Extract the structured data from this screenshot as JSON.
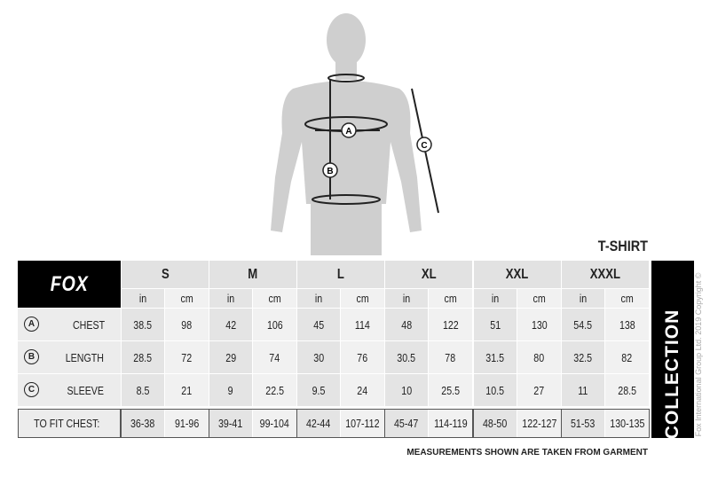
{
  "product_title": "T-SHIRT",
  "brand": "FOX",
  "side_label": "COLLECTION",
  "copyright": "Fox International Group Ltd. 2019 Copyright ©",
  "footnote": "MEASUREMENTS SHOWN ARE TAKEN FROM GARMENT",
  "figure_markers": [
    "A",
    "B",
    "C"
  ],
  "units": [
    "in",
    "cm"
  ],
  "sizes": [
    "S",
    "M",
    "L",
    "XL",
    "XXL",
    "XXXL"
  ],
  "rows": [
    {
      "marker": "A",
      "label": "CHEST",
      "values": [
        "38.5",
        "98",
        "42",
        "106",
        "45",
        "114",
        "48",
        "122",
        "51",
        "130",
        "54.5",
        "138"
      ]
    },
    {
      "marker": "B",
      "label": "LENGTH",
      "values": [
        "28.5",
        "72",
        "29",
        "74",
        "30",
        "76",
        "30.5",
        "78",
        "31.5",
        "80",
        "32.5",
        "82"
      ]
    },
    {
      "marker": "C",
      "label": "SLEEVE",
      "values": [
        "8.5",
        "21",
        "9",
        "22.5",
        "9.5",
        "24",
        "10",
        "25.5",
        "10.5",
        "27",
        "11",
        "28.5"
      ]
    }
  ],
  "fit": {
    "label": "TO FIT CHEST:",
    "values": [
      "36-38",
      "91-96",
      "39-41",
      "99-104",
      "42-44",
      "107-112",
      "45-47",
      "114-119",
      "48-50",
      "122-127",
      "51-53",
      "130-135"
    ]
  }
}
